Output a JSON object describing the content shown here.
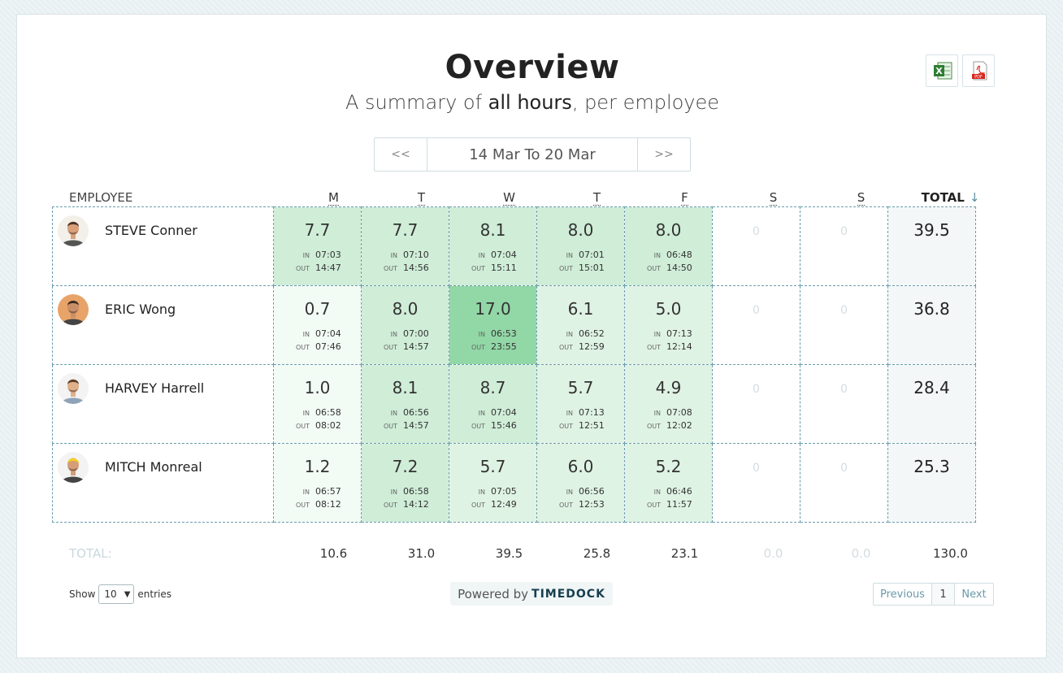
{
  "title": "Overview",
  "subtitle": {
    "pre": "A summary of ",
    "bold": "all hours",
    "post": ", per employee"
  },
  "exports": [
    {
      "name": "excel-export-button",
      "icon": "excel-icon"
    },
    {
      "name": "pdf-export-button",
      "icon": "pdf-icon"
    }
  ],
  "date_nav": {
    "prev": "<<",
    "range": "14 Mar To 20 Mar",
    "next": ">>"
  },
  "headers": {
    "employee": "EMPLOYEE",
    "days": [
      "M",
      "T",
      "W",
      "T",
      "F",
      "S",
      "S"
    ],
    "total": "TOTAL",
    "sort_icon": "arrow-down-icon"
  },
  "time_labels": {
    "in": "IN",
    "out": "OUT"
  },
  "colors": {
    "light": "#f3fbf5",
    "mid1": "#dff3e4",
    "mid2": "#cfedd7",
    "strong": "#92d7a6",
    "border": "#6c9dad"
  },
  "employees": [
    {
      "name": "STEVE Conner",
      "total": "39.5",
      "days": [
        {
          "hours": "7.7",
          "in": "07:03",
          "out": "14:47",
          "shade": "mid2"
        },
        {
          "hours": "7.7",
          "in": "07:10",
          "out": "14:56",
          "shade": "mid2"
        },
        {
          "hours": "8.1",
          "in": "07:04",
          "out": "15:11",
          "shade": "mid2"
        },
        {
          "hours": "8.0",
          "in": "07:01",
          "out": "15:01",
          "shade": "mid2"
        },
        {
          "hours": "8.0",
          "in": "06:48",
          "out": "14:50",
          "shade": "mid2"
        },
        {
          "hours": "0"
        },
        {
          "hours": "0"
        }
      ]
    },
    {
      "name": "ERIC Wong",
      "total": "36.8",
      "days": [
        {
          "hours": "0.7",
          "in": "07:04",
          "out": "07:46",
          "shade": "light"
        },
        {
          "hours": "8.0",
          "in": "07:00",
          "out": "14:57",
          "shade": "mid2"
        },
        {
          "hours": "17.0",
          "in": "06:53",
          "out": "23:55",
          "shade": "strong"
        },
        {
          "hours": "6.1",
          "in": "06:52",
          "out": "12:59",
          "shade": "mid1"
        },
        {
          "hours": "5.0",
          "in": "07:13",
          "out": "12:14",
          "shade": "mid1"
        },
        {
          "hours": "0"
        },
        {
          "hours": "0"
        }
      ]
    },
    {
      "name": "HARVEY Harrell",
      "total": "28.4",
      "days": [
        {
          "hours": "1.0",
          "in": "06:58",
          "out": "08:02",
          "shade": "light"
        },
        {
          "hours": "8.1",
          "in": "06:56",
          "out": "14:57",
          "shade": "mid2"
        },
        {
          "hours": "8.7",
          "in": "07:04",
          "out": "15:46",
          "shade": "mid2"
        },
        {
          "hours": "5.7",
          "in": "07:13",
          "out": "12:51",
          "shade": "mid1"
        },
        {
          "hours": "4.9",
          "in": "07:08",
          "out": "12:02",
          "shade": "mid1"
        },
        {
          "hours": "0"
        },
        {
          "hours": "0"
        }
      ]
    },
    {
      "name": "MITCH Monreal",
      "total": "25.3",
      "days": [
        {
          "hours": "1.2",
          "in": "06:57",
          "out": "08:12",
          "shade": "light"
        },
        {
          "hours": "7.2",
          "in": "06:58",
          "out": "14:12",
          "shade": "mid2"
        },
        {
          "hours": "5.7",
          "in": "07:05",
          "out": "12:49",
          "shade": "mid1"
        },
        {
          "hours": "6.0",
          "in": "06:56",
          "out": "12:53",
          "shade": "mid1"
        },
        {
          "hours": "5.2",
          "in": "06:46",
          "out": "11:57",
          "shade": "mid1"
        },
        {
          "hours": "0"
        },
        {
          "hours": "0"
        }
      ]
    }
  ],
  "footer_totals": {
    "label": "TOTAL:",
    "days": [
      "10.6",
      "31.0",
      "39.5",
      "25.8",
      "23.1",
      "0.0",
      "0.0"
    ],
    "grand": "130.0"
  },
  "show_entries": {
    "show": "Show",
    "value": "10",
    "entries": "entries"
  },
  "powered": {
    "text": "Powered by",
    "brand": "TIMEDOCK"
  },
  "pagination": {
    "prev": "Previous",
    "page": "1",
    "next": "Next"
  }
}
